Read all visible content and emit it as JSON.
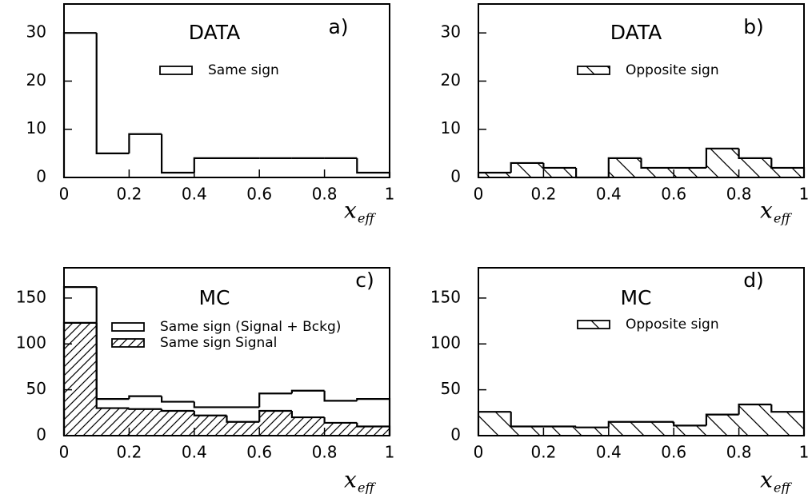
{
  "chart_data": [
    {
      "type": "histogram",
      "title": "DATA",
      "label": "a)",
      "x_label": "x",
      "x_label_sub": "eff",
      "bins": [
        0,
        0.1,
        0.2,
        0.3,
        0.4,
        0.5,
        0.6,
        0.7,
        0.8,
        0.9,
        1
      ],
      "series": [
        {
          "name": "Same sign",
          "color": "#000000",
          "hatch": "none",
          "values": [
            30,
            5,
            9,
            1,
            4,
            4,
            4,
            4,
            4,
            1
          ]
        }
      ],
      "xlim": [
        0,
        1
      ],
      "ylim": [
        0,
        36
      ],
      "xticks": [
        0,
        0.2,
        0.4,
        0.6,
        0.8,
        1
      ],
      "yticks": [
        0,
        10,
        20,
        30
      ]
    },
    {
      "type": "histogram",
      "title": "DATA",
      "label": "b)",
      "x_label": "x",
      "x_label_sub": "eff",
      "bins": [
        0,
        0.1,
        0.2,
        0.3,
        0.4,
        0.5,
        0.6,
        0.7,
        0.8,
        0.9,
        1
      ],
      "series": [
        {
          "name": "Opposite sign",
          "color": "#000000",
          "hatch": "back",
          "values": [
            1,
            3,
            2,
            0,
            4,
            2,
            2,
            6,
            4,
            2
          ]
        }
      ],
      "xlim": [
        0,
        1
      ],
      "ylim": [
        0,
        36
      ],
      "xticks": [
        0,
        0.2,
        0.4,
        0.6,
        0.8,
        1
      ],
      "yticks": [
        0,
        10,
        20,
        30
      ]
    },
    {
      "type": "histogram",
      "title": "MC",
      "label": "c)",
      "x_label": "x",
      "x_label_sub": "eff",
      "bins": [
        0,
        0.1,
        0.2,
        0.3,
        0.4,
        0.5,
        0.6,
        0.7,
        0.8,
        0.9,
        1
      ],
      "series": [
        {
          "name": "Same sign (Signal + Bckg)",
          "color": "#000000",
          "hatch": "none",
          "values": [
            162,
            40,
            43,
            37,
            31,
            31,
            46,
            49,
            38,
            40
          ]
        },
        {
          "name": "Same sign Signal",
          "color": "#000000",
          "hatch": "forward",
          "values": [
            123,
            30,
            29,
            27,
            22,
            15,
            27,
            20,
            14,
            10
          ]
        }
      ],
      "xlim": [
        0,
        1
      ],
      "ylim": [
        0,
        183
      ],
      "xticks": [
        0,
        0.2,
        0.4,
        0.6,
        0.8,
        1
      ],
      "yticks": [
        0,
        50,
        100,
        150
      ]
    },
    {
      "type": "histogram",
      "title": "MC",
      "label": "d)",
      "x_label": "x",
      "x_label_sub": "eff",
      "bins": [
        0,
        0.1,
        0.2,
        0.3,
        0.4,
        0.5,
        0.6,
        0.7,
        0.8,
        0.9,
        1
      ],
      "series": [
        {
          "name": "Opposite sign",
          "color": "#000000",
          "hatch": "back",
          "values": [
            26,
            10,
            10,
            9,
            15,
            15,
            11,
            23,
            34,
            26
          ]
        }
      ],
      "xlim": [
        0,
        1
      ],
      "ylim": [
        0,
        183
      ],
      "xticks": [
        0,
        0.2,
        0.4,
        0.6,
        0.8,
        1
      ],
      "yticks": [
        0,
        50,
        100,
        150
      ]
    }
  ]
}
